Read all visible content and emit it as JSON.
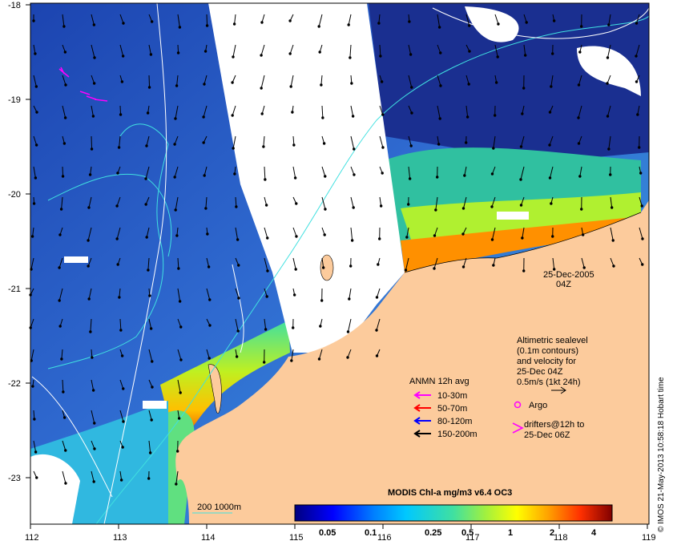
{
  "axes": {
    "lat_ticks": [
      "-18",
      "-19",
      "-20",
      "-21",
      "-22",
      "-23"
    ],
    "lon_ticks": [
      "112",
      "113",
      "114",
      "115",
      "116",
      "117",
      "118",
      "119"
    ]
  },
  "date_label": {
    "date": "25-Dec-2005",
    "time": "04Z"
  },
  "sealevel_note": {
    "lines": [
      "Altimetric sealevel",
      "(0.1m contours)",
      "and velocity for",
      "25-Dec 04Z",
      "0.5m/s (1kt 24h)"
    ]
  },
  "anmn_legend": {
    "title": "ANMN 12h avg",
    "items": [
      {
        "label": "10-30m",
        "color": "#ff00ff"
      },
      {
        "label": "50-70m",
        "color": "#ff0000"
      },
      {
        "label": "80-120m",
        "color": "#0000ff"
      },
      {
        "label": "150-200m",
        "color": "#000000"
      }
    ]
  },
  "argo": {
    "label": "Argo",
    "color": "#ff00ff"
  },
  "drifters": {
    "lines": [
      "drifters@12h to",
      "25-Dec 06Z"
    ],
    "color": "#ff00ff"
  },
  "colorbar": {
    "title": "MODIS Chl-a mg/m3 v6.4 OC3",
    "ticks": [
      "0.05",
      "0.1",
      "0.25",
      "0.5",
      "1",
      "2",
      "4"
    ]
  },
  "isobath_label": "200  1000m",
  "credit": "© IMOS 21-May-2013 10:58:18 Hobart time",
  "colors": {
    "land": "#fccb9c",
    "ocean_deep": "#1a3fa8",
    "ocean_mid": "#3a78d8",
    "clouds": "#ffffff",
    "isobath": "#40e0e0"
  }
}
